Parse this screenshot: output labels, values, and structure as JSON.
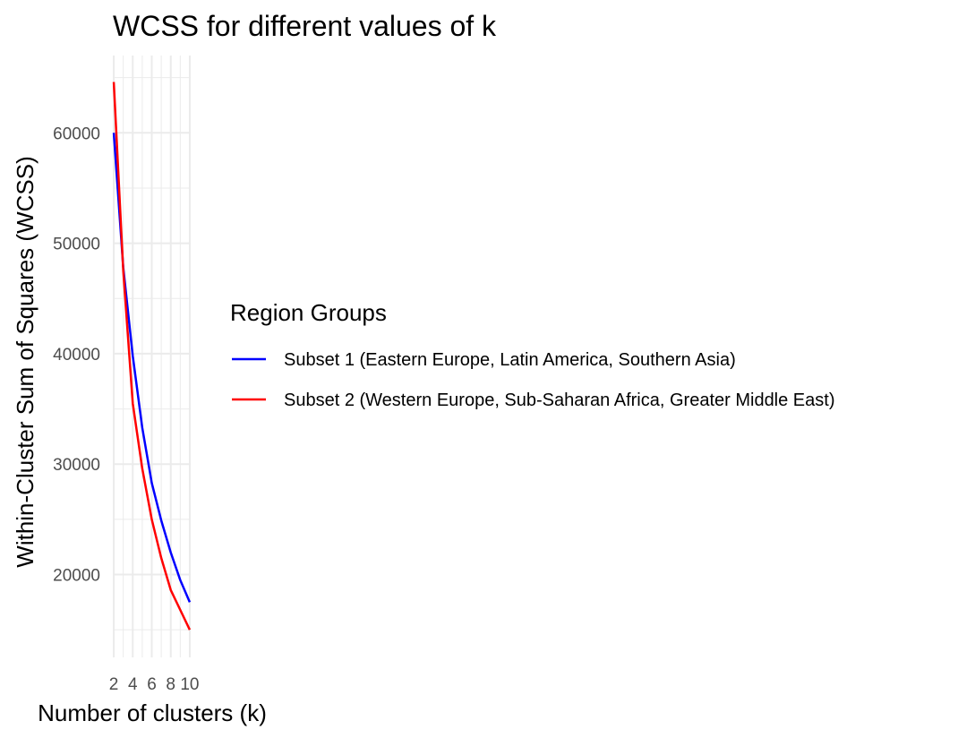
{
  "chart_data": {
    "type": "line",
    "title": "WCSS for different values of k",
    "xlabel": "Number of clusters (k)",
    "ylabel": "Within-Cluster Sum of Squares (WCSS)",
    "x": [
      2,
      3,
      4,
      5,
      6,
      7,
      8,
      9,
      10
    ],
    "x_ticks": [
      2,
      4,
      6,
      8,
      10
    ],
    "x_tick_labels": [
      "2",
      "4",
      "6",
      "8",
      "10"
    ],
    "y_ticks": [
      20000,
      30000,
      40000,
      50000,
      60000
    ],
    "y_tick_labels": [
      "20000",
      "30000",
      "40000",
      "50000",
      "60000"
    ],
    "xlim": [
      1.9,
      10.1
    ],
    "ylim": [
      12500,
      67000
    ],
    "grid": true,
    "legend": {
      "title": "Region Groups",
      "placement": "right"
    },
    "series": [
      {
        "name": "Subset 1 (Eastern Europe, Latin America, Southern Asia)",
        "color": "#0000ff",
        "values": [
          60000,
          47800,
          39800,
          33300,
          28300,
          24900,
          22000,
          19500,
          17500
        ]
      },
      {
        "name": "Subset 2 (Western Europe, Sub-Saharan Africa, Greater Middle East)",
        "color": "#ff0000",
        "values": [
          64600,
          47500,
          35500,
          29600,
          25000,
          21500,
          18600,
          16800,
          15000
        ]
      }
    ]
  }
}
